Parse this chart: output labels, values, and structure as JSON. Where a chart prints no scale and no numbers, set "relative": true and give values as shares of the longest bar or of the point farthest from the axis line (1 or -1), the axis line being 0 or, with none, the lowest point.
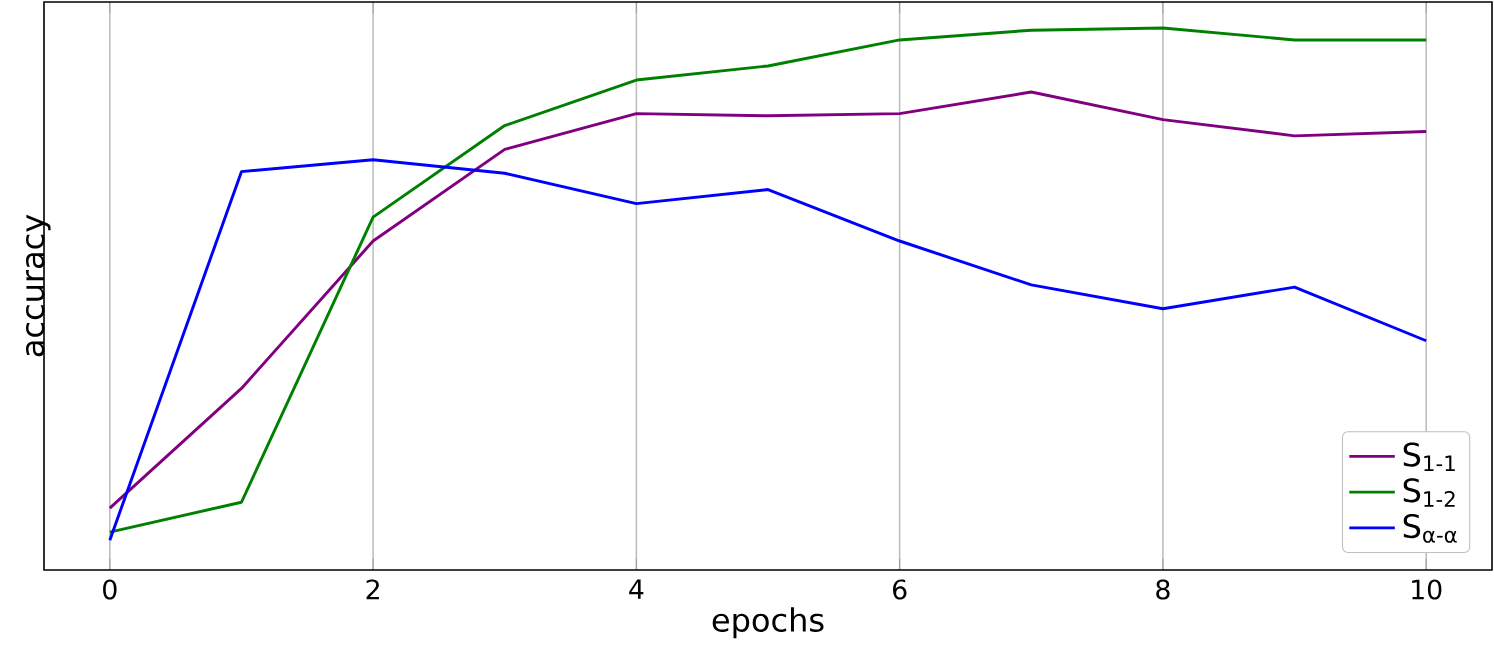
{
  "chart_data": {
    "type": "line",
    "xlabel": "epochs",
    "ylabel": "accuracy",
    "relative": true,
    "x": [
      0,
      1,
      2,
      3,
      4,
      5,
      6,
      7,
      8,
      9,
      10
    ],
    "xlim": [
      -0.5,
      10.5
    ],
    "xticks": [
      0,
      2,
      4,
      6,
      8,
      10
    ],
    "grid": "x",
    "legend": "bottom right",
    "marker": "none",
    "line_style": "solid",
    "series": [
      {
        "name": "S$_{1-1}$",
        "color": "#800080",
        "values": [
          0.114,
          0.335,
          0.607,
          0.776,
          0.842,
          0.838,
          0.842,
          0.882,
          0.831,
          0.801,
          0.809
        ]
      },
      {
        "name": "S$_{1-2}$",
        "color": "#008000",
        "values": [
          0.07,
          0.125,
          0.651,
          0.82,
          0.904,
          0.93,
          0.978,
          0.996,
          1,
          0.978,
          0.978
        ]
      },
      {
        "name": "S$_{α-α}$",
        "color": "#0000ff",
        "values": [
          0.055,
          0.735,
          0.757,
          0.732,
          0.676,
          0.702,
          0.607,
          0.526,
          0.482,
          0.522,
          0.423
        ]
      }
    ]
  }
}
